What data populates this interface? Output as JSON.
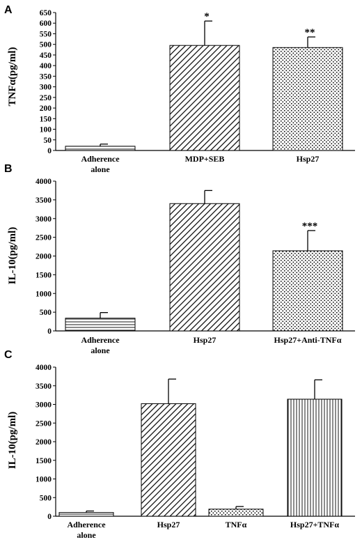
{
  "chart_data": [
    {
      "type": "bar",
      "panel": "A",
      "ylabel": "TNFα(pg/ml)",
      "ylim": [
        0,
        650
      ],
      "yticks": [
        0,
        50,
        100,
        150,
        200,
        250,
        300,
        350,
        400,
        450,
        500,
        550,
        600,
        650
      ],
      "categories": [
        "Adherence alone",
        "MDP+SEB",
        "Hsp27"
      ],
      "category_lines": [
        [
          "Adherence",
          "alone"
        ],
        [
          "MDP+SEB"
        ],
        [
          "Hsp27"
        ]
      ],
      "values": [
        20,
        495,
        485
      ],
      "errors": [
        10,
        115,
        50
      ],
      "significance": [
        "",
        "*",
        "**"
      ],
      "patterns": [
        "hlines",
        "diag",
        "dots"
      ]
    },
    {
      "type": "bar",
      "panel": "B",
      "ylabel": "IL-10(pg/ml)",
      "ylim": [
        0,
        4000
      ],
      "yticks": [
        0,
        500,
        1000,
        1500,
        2000,
        2500,
        3000,
        3500,
        4000
      ],
      "categories": [
        "Adherence alone",
        "Hsp27",
        "Hsp27+Anti-TNFα"
      ],
      "category_lines": [
        [
          "Adherence",
          "alone"
        ],
        [
          "Hsp27"
        ],
        [
          "Hsp27+Anti-TNFα"
        ]
      ],
      "values": [
        340,
        3400,
        2140
      ],
      "errors": [
        150,
        350,
        540
      ],
      "significance": [
        "",
        "",
        "***"
      ],
      "patterns": [
        "hlines",
        "diag",
        "dots"
      ]
    },
    {
      "type": "bar",
      "panel": "C",
      "ylabel": "IL-10(pg/ml)",
      "ylim": [
        0,
        4000
      ],
      "yticks": [
        0,
        500,
        1000,
        1500,
        2000,
        2500,
        3000,
        3500,
        4000
      ],
      "categories": [
        "Adherence alone",
        "Hsp27",
        "TNFα",
        "Hsp27+TNFα"
      ],
      "category_lines": [
        [
          "Adherence",
          "alone"
        ],
        [
          "Hsp27"
        ],
        [
          "TNFα"
        ],
        [
          "Hsp27+TNFα"
        ]
      ],
      "values": [
        100,
        3020,
        190,
        3140
      ],
      "errors": [
        40,
        660,
        70,
        520
      ],
      "significance": [
        "",
        "",
        "",
        ""
      ],
      "patterns": [
        "hlines",
        "diag",
        "dots",
        "vlines"
      ]
    }
  ]
}
